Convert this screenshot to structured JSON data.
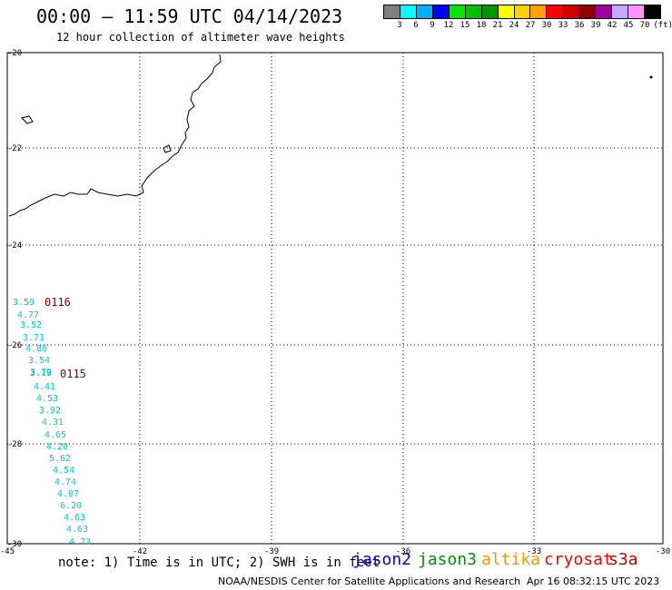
{
  "header": {
    "title": "00:00 – 11:59 UTC 04/14/2023",
    "subtitle": "12 hour collection of altimeter wave heights"
  },
  "legend": {
    "colors": [
      "#808080",
      "#00ffff",
      "#00b0ff",
      "#0000ff",
      "#00e600",
      "#00c000",
      "#009600",
      "#ffff00",
      "#ffd000",
      "#ffa000",
      "#ff0000",
      "#d00000",
      "#900000",
      "#a000a0",
      "#c8a8ff",
      "#ff90ff",
      "#000000"
    ],
    "ticks": [
      "3",
      "6",
      "9",
      "12",
      "15",
      "18",
      "21",
      "24",
      "27",
      "30",
      "33",
      "36",
      "39",
      "42",
      "45",
      "70",
      "(ft)"
    ]
  },
  "map": {
    "lat_labels": [
      "-20",
      "-22",
      "-24",
      "-26",
      "-28",
      "-30"
    ],
    "lon_labels": [
      "-45",
      "-42",
      "-39",
      "-36",
      "-33",
      "-30"
    ],
    "wave_labels": [
      "3.59",
      "4.77",
      "3.52",
      "3.71",
      "4.80",
      "3.54",
      "3.79",
      "3.19",
      "4.41",
      "4.53",
      "3.92",
      "4.31",
      "4.65",
      "4.20",
      "5.62",
      "4.54",
      "4.74",
      "4.07",
      "6.20",
      "4.63",
      "4.63",
      "4.73"
    ],
    "wave_color": "#00c8e6",
    "pass_labels": [
      "0116",
      "0115"
    ],
    "pass_color": "#800000"
  },
  "footer": {
    "note": "note: 1) Time is in UTC; 2) SWH is in feet",
    "satellites": [
      {
        "name": "jason2",
        "color": "#0000ff"
      },
      {
        "name": "jason3",
        "color": "#009600"
      },
      {
        "name": "altika",
        "color": "#ff9600"
      },
      {
        "name": "cryosat",
        "color": "#ff0000"
      },
      {
        "name": "s3a",
        "color": "#c80000"
      }
    ],
    "credit": "NOAA/NESDIS Center for Satellite Applications and Research",
    "timestamp": "Apr 16 08:32:15 UTC 2023"
  }
}
